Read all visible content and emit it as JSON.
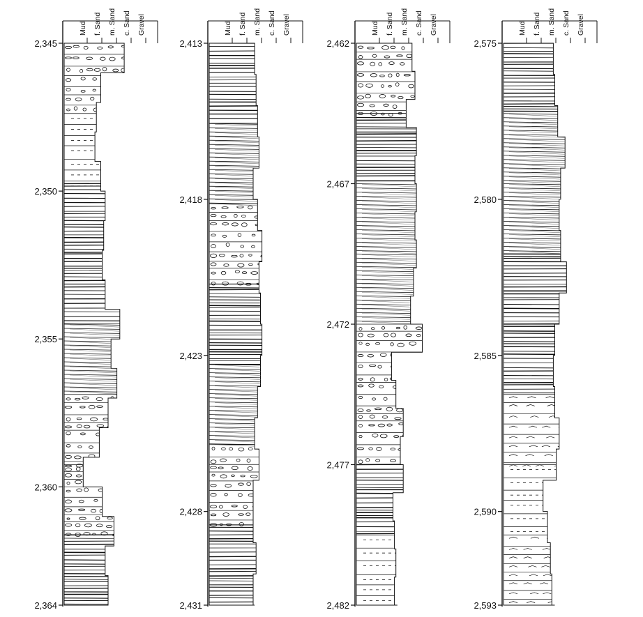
{
  "figure": {
    "type": "sedimentary-log-panel",
    "grain_size_scale": [
      "Mud",
      "f. Sand",
      "m. Sand",
      "c. Sand",
      "Gravel"
    ],
    "columns": [
      {
        "ticks": [
          "2,345",
          "2,350",
          "2,355",
          "2,360",
          "2,364"
        ],
        "tick_values": [
          2345,
          2350,
          2355,
          2360,
          2364
        ],
        "top": 2345,
        "bottom": 2364,
        "profile": [
          [
            2345,
            4.1
          ],
          [
            2346,
            2.5
          ],
          [
            2347,
            2.2
          ],
          [
            2348,
            2.1
          ],
          [
            2349,
            2.5
          ],
          [
            2350,
            2.8
          ],
          [
            2351,
            2.7
          ],
          [
            2352,
            2.6
          ],
          [
            2353,
            2.8
          ],
          [
            2354,
            3.8
          ],
          [
            2355,
            3.2
          ],
          [
            2356,
            3.6
          ],
          [
            2357,
            3.0
          ],
          [
            2358,
            2.4
          ],
          [
            2359,
            1.3
          ],
          [
            2360,
            2.6
          ],
          [
            2361,
            3.4
          ],
          [
            2362,
            2.8
          ],
          [
            2363,
            3.0
          ],
          [
            2364,
            3.0
          ]
        ],
        "texture": [
          "conglomerate",
          "sandstone",
          "laminated",
          "laminated",
          "cross-bedded",
          "mud-clasts",
          "conglomerate",
          "laminated"
        ]
      },
      {
        "ticks": [
          "2,413",
          "2,418",
          "2,423",
          "2,428",
          "2,431"
        ],
        "tick_values": [
          2413,
          2418,
          2423,
          2428,
          2431
        ],
        "top": 2413,
        "bottom": 2431,
        "profile": [
          [
            2413,
            3.1
          ],
          [
            2414,
            3.2
          ],
          [
            2415,
            3.3
          ],
          [
            2416,
            3.4
          ],
          [
            2417,
            3.0
          ],
          [
            2418,
            3.3
          ],
          [
            2419,
            3.6
          ],
          [
            2420,
            3.4
          ],
          [
            2421,
            3.5
          ],
          [
            2422,
            3.6
          ],
          [
            2423,
            3.5
          ],
          [
            2424,
            3.3
          ],
          [
            2425,
            3.1
          ],
          [
            2426,
            3.4
          ],
          [
            2427,
            3.0
          ],
          [
            2428,
            3.0
          ],
          [
            2429,
            3.2
          ],
          [
            2430,
            3.0
          ],
          [
            2431,
            3.1
          ]
        ],
        "texture": [
          "laminated",
          "cross-bedded",
          "mud-clasts",
          "laminated",
          "cross-bedded",
          "mud-clasts",
          "laminated"
        ]
      },
      {
        "ticks": [
          "2,462",
          "2,467",
          "2,472",
          "2,477",
          "2,482"
        ],
        "tick_values": [
          2462,
          2467,
          2472,
          2477,
          2482
        ],
        "top": 2462,
        "bottom": 2482,
        "profile": [
          [
            2462,
            3.8
          ],
          [
            2463,
            4.0
          ],
          [
            2464,
            3.4
          ],
          [
            2465,
            4.1
          ],
          [
            2466,
            4.0
          ],
          [
            2467,
            4.1
          ],
          [
            2468,
            4.0
          ],
          [
            2469,
            4.1
          ],
          [
            2470,
            3.9
          ],
          [
            2471,
            3.7
          ],
          [
            2472,
            4.5
          ],
          [
            2473,
            2.4
          ],
          [
            2474,
            2.7
          ],
          [
            2475,
            3.2
          ],
          [
            2476,
            3.0
          ],
          [
            2477,
            3.2
          ],
          [
            2478,
            2.5
          ],
          [
            2479,
            2.6
          ],
          [
            2480,
            2.7
          ],
          [
            2481,
            2.6
          ],
          [
            2482,
            2.8
          ]
        ],
        "texture": [
          "mud-clasts",
          "laminated",
          "cross-bedded",
          "cross-bedded",
          "mud-clasts",
          "conglomerate",
          "laminated",
          "sandstone"
        ]
      },
      {
        "ticks": [
          "2,575",
          "2,580",
          "2,585",
          "2,590",
          "2,593"
        ],
        "tick_values": [
          2575,
          2580,
          2585,
          2590,
          2593
        ],
        "top": 2575,
        "bottom": 2593,
        "profile": [
          [
            2575,
            3.4
          ],
          [
            2576,
            3.5
          ],
          [
            2577,
            3.7
          ],
          [
            2578,
            4.2
          ],
          [
            2579,
            3.9
          ],
          [
            2580,
            3.8
          ],
          [
            2581,
            3.9
          ],
          [
            2582,
            4.3
          ],
          [
            2583,
            3.8
          ],
          [
            2584,
            3.5
          ],
          [
            2585,
            3.4
          ],
          [
            2586,
            3.5
          ],
          [
            2587,
            3.8
          ],
          [
            2588,
            3.6
          ],
          [
            2589,
            2.7
          ],
          [
            2590,
            3.0
          ],
          [
            2591,
            3.2
          ],
          [
            2592,
            3.3
          ],
          [
            2593,
            3.5
          ]
        ],
        "texture": [
          "laminated",
          "cross-bedded",
          "cross-bedded",
          "laminated",
          "laminated",
          "rippled",
          "sandstone",
          "rippled"
        ]
      }
    ],
    "colors": {
      "ink": "#111111",
      "paper": "#ffffff",
      "shading": "#777777"
    }
  }
}
